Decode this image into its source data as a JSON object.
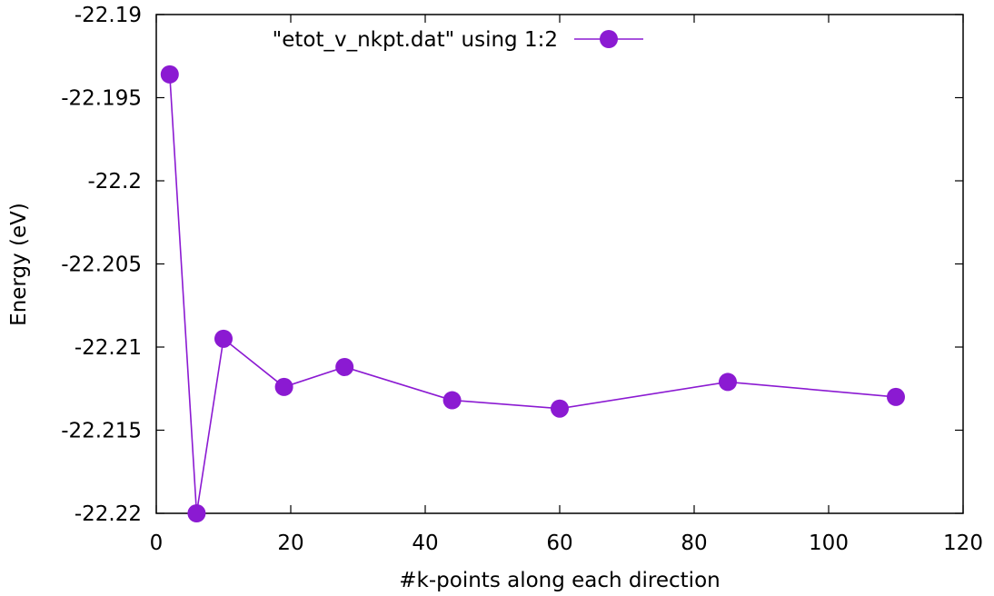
{
  "chart_data": {
    "type": "line",
    "xlabel": "#k-points along each direction",
    "ylabel": "Energy (eV)",
    "xlim": [
      0,
      120
    ],
    "ylim": [
      -22.22,
      -22.19
    ],
    "xticks": [
      0,
      20,
      40,
      60,
      80,
      100,
      120
    ],
    "xtick_labels": [
      "0",
      "20",
      "40",
      "60",
      "80",
      "100",
      "120"
    ],
    "yticks": [
      -22.22,
      -22.215,
      -22.21,
      -22.205,
      -22.2,
      -22.195,
      -22.19
    ],
    "ytick_labels": [
      "-22.22",
      "-22.215",
      "-22.21",
      "-22.205",
      "-22.2",
      "-22.195",
      "-22.19"
    ],
    "grid": false,
    "legend_position": "top-center",
    "series": [
      {
        "name": "\"etot_v_nkpt.dat\" using 1:2",
        "color": "#8b1ad2",
        "marker": "circle",
        "x": [
          2,
          6,
          10,
          19,
          28,
          44,
          60,
          85,
          110
        ],
        "y": [
          -22.1936,
          -22.22,
          -22.2095,
          -22.2124,
          -22.2112,
          -22.2132,
          -22.2137,
          -22.2121,
          -22.213
        ]
      }
    ]
  }
}
